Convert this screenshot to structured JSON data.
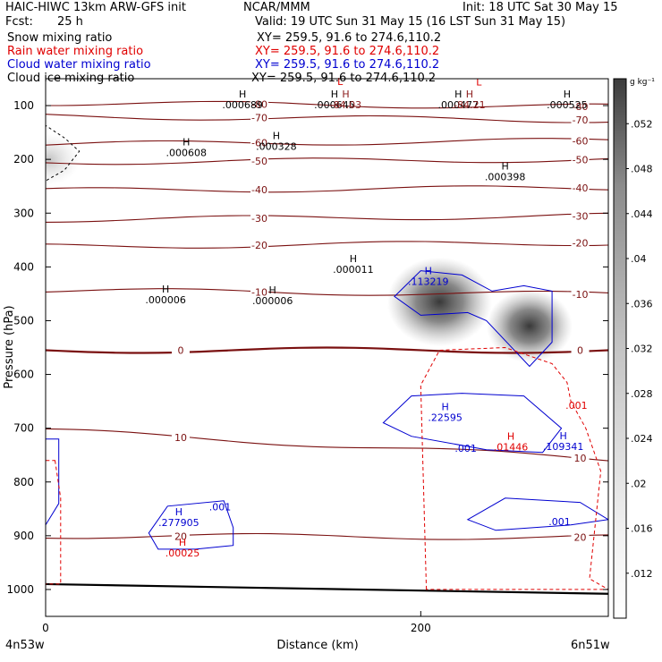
{
  "header": {
    "model": "HAIC-HIWC 13km ARW-GFS init",
    "org": "NCAR/MMM",
    "init": "Init: 18 UTC Sat 30 May 15",
    "fcst_label": "Fcst:",
    "fcst_value": "25 h",
    "valid": "Valid: 19 UTC Sun 31 May 15 (16 LST Sun 31 May 15)",
    "fields": [
      {
        "name": "Snow mixing ratio",
        "xy": "XY= 259.5, 91.6 to 274.6,110.2",
        "color": "#000000"
      },
      {
        "name": "Rain water mixing ratio",
        "xy": "XY= 259.5, 91.6 to 274.6,110.2",
        "color": "#e00000"
      },
      {
        "name": "Cloud water mixing ratio",
        "xy": "XY= 259.5, 91.6 to 274.6,110.2",
        "color": "#0000d0"
      },
      {
        "name": "Cloud ice mixing ratio",
        "xy": "XY= 259.5, 91.6 to 274.6,110.2",
        "color": "#000000"
      }
    ]
  },
  "chart_data": {
    "type": "contour",
    "xlabel": "Distance (km)",
    "ylabel": "Pressure (hPa)",
    "x_ticks": [
      0,
      200
    ],
    "x_range": [
      0,
      300
    ],
    "y_ticks": [
      100,
      200,
      300,
      400,
      500,
      600,
      700,
      800,
      900,
      1000
    ],
    "y_range": [
      50,
      1050
    ],
    "endpoint_labels": {
      "left": "4n53w",
      "right": "6n51w"
    },
    "colorbar": {
      "unit": "g kg⁻¹",
      "ticks": [
        ".012",
        ".016",
        ".02",
        ".024",
        ".028",
        ".032",
        ".036",
        ".04",
        ".044",
        ".048",
        ".052"
      ],
      "range": [
        0.008,
        0.056
      ]
    },
    "temperature_contours": [
      {
        "value": -80,
        "label": "-80",
        "p_left": 95,
        "p_right": 102
      },
      {
        "value": -70,
        "label": "-70",
        "p_left": 120,
        "p_right": 127
      },
      {
        "value": -60,
        "label": "-60",
        "p_left": 172,
        "p_right": 165
      },
      {
        "value": -50,
        "label": "-50",
        "p_left": 205,
        "p_right": 200
      },
      {
        "value": -40,
        "label": "-40",
        "p_left": 258,
        "p_right": 253
      },
      {
        "value": -30,
        "label": "-30",
        "p_left": 312,
        "p_right": 305
      },
      {
        "value": -20,
        "label": "-20",
        "p_left": 362,
        "p_right": 355
      },
      {
        "value": -10,
        "label": "-10",
        "p_left": 444,
        "p_right": 451
      },
      {
        "value": 0,
        "label": "0",
        "p_left": 555,
        "p_right": 555
      },
      {
        "value": 10,
        "label": "10",
        "p_left": 704,
        "p_right": 758
      },
      {
        "value": 20,
        "label": "20",
        "p_left": 900,
        "p_right": 903
      }
    ],
    "annotations": [
      {
        "mark": "L",
        "value": "",
        "x": 157,
        "p": 75,
        "color": "#e00000"
      },
      {
        "mark": "L",
        "value": "",
        "x": 231,
        "p": 76,
        "color": "#e00000"
      },
      {
        "mark": "H",
        "value": ".000689",
        "x": 105,
        "p": 98,
        "color": "#000000"
      },
      {
        "mark": "H",
        "value": ".000645",
        "x": 154,
        "p": 98,
        "color": "#000000"
      },
      {
        "mark": "H",
        "value": "-84.03",
        "x": 160,
        "p": 98,
        "color": "#8b1a1a"
      },
      {
        "mark": "H",
        "value": ".000477",
        "x": 220,
        "p": 98,
        "color": "#000000"
      },
      {
        "mark": "H",
        "value": "-84.21",
        "x": 226,
        "p": 98,
        "color": "#8b1a1a"
      },
      {
        "mark": "H",
        "value": ".000525",
        "x": 278,
        "p": 98,
        "color": "#000000"
      },
      {
        "mark": "H",
        "value": ".000608",
        "x": 75,
        "p": 187,
        "color": "#000000"
      },
      {
        "mark": "H",
        "value": ".000328",
        "x": 123,
        "p": 176,
        "color": "#000000"
      },
      {
        "mark": "H",
        "value": ".000398",
        "x": 245,
        "p": 232,
        "color": "#000000"
      },
      {
        "mark": "H",
        "value": ".000011",
        "x": 164,
        "p": 404,
        "color": "#000000"
      },
      {
        "mark": "H",
        "value": ".000006",
        "x": 64,
        "p": 461,
        "color": "#000000"
      },
      {
        "mark": "H",
        "value": ".000006",
        "x": 121,
        "p": 463,
        "color": "#000000"
      },
      {
        "mark": "H",
        "value": ".113219",
        "x": 204,
        "p": 427,
        "color": "#0000d0"
      },
      {
        "mark": "H",
        "value": ".22595",
        "x": 213,
        "p": 680,
        "color": "#0000d0"
      },
      {
        "mark": "",
        "value": ".001",
        "x": 224,
        "p": 737,
        "color": "#0000d0"
      },
      {
        "mark": "H",
        "value": ".01446",
        "x": 248,
        "p": 735,
        "color": "#e00000"
      },
      {
        "mark": "H",
        "value": ".109341",
        "x": 276,
        "p": 734,
        "color": "#0000d0"
      },
      {
        "mark": "",
        "value": ".001",
        "x": 283,
        "p": 657,
        "color": "#e00000"
      },
      {
        "mark": "",
        "value": ".001",
        "x": 274,
        "p": 874,
        "color": "#0000d0"
      },
      {
        "mark": "",
        "value": ".001",
        "x": 93,
        "p": 846,
        "color": "#0000d0"
      },
      {
        "mark": "H",
        "value": ".277905",
        "x": 71,
        "p": 875,
        "color": "#0000d0"
      },
      {
        "mark": "H",
        "value": ".00025",
        "x": 73,
        "p": 932,
        "color": "#e00000"
      }
    ],
    "shaded_maxima": [
      {
        "x": 210,
        "p": 465,
        "value_approx": 0.055
      },
      {
        "x": 258,
        "p": 510,
        "value_approx": 0.04
      },
      {
        "x": 2,
        "p": 200,
        "value_approx": 0.02
      }
    ]
  }
}
